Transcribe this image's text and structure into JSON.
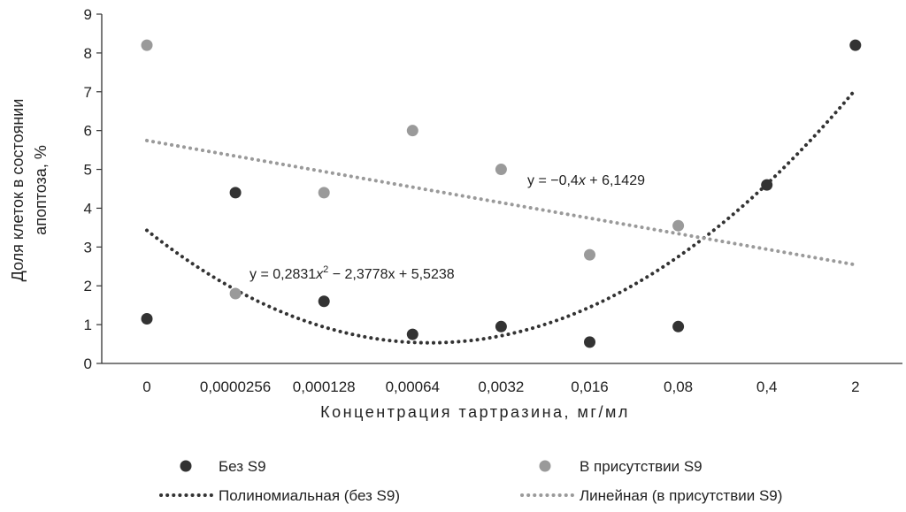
{
  "chart_data": {
    "type": "scatter",
    "categories": [
      "0",
      "0,0000256",
      "0,000128",
      "0,00064",
      "0,0032",
      "0,016",
      "0,08",
      "0,4",
      "2"
    ],
    "ylim": [
      0,
      9
    ],
    "yticks": [
      "0",
      "1",
      "2",
      "3",
      "4",
      "5",
      "6",
      "7",
      "8",
      "9"
    ],
    "xlabel": "Концентрация тартразина, мг/мл",
    "ylabel_line1": "Доля клеток в состоянии",
    "ylabel_line2": "апоптоза, %",
    "grid": false,
    "legend_position": "bottom",
    "series": [
      {
        "name": "Без S9",
        "color": "#333333",
        "values": [
          1.15,
          4.4,
          1.6,
          0.75,
          0.95,
          0.55,
          0.95,
          4.6,
          8.2
        ]
      },
      {
        "name": "В присутствии S9",
        "color": "#9a9a9a",
        "values": [
          8.2,
          1.8,
          4.4,
          6.0,
          5.0,
          2.8,
          3.55,
          null,
          null
        ]
      }
    ],
    "trendlines": [
      {
        "name": "Полиномиальная (без S9)",
        "type": "polynomial",
        "coefficients": [
          0.2831,
          -2.3778,
          5.5238
        ],
        "color": "#333333"
      },
      {
        "name": "Линейная (в присутствии S9)",
        "type": "linear",
        "coefficients": [
          -0.4,
          6.1429
        ],
        "color": "#9a9a9a"
      }
    ],
    "equations": {
      "linear": {
        "prefix": "y = −0,4",
        "var": "x",
        "suffix": " + 6,1429"
      },
      "poly": {
        "prefix": "y = 0,2831",
        "var": "x",
        "sup": "2",
        "suffix": " − 2,3778x + 5,5238"
      }
    }
  }
}
